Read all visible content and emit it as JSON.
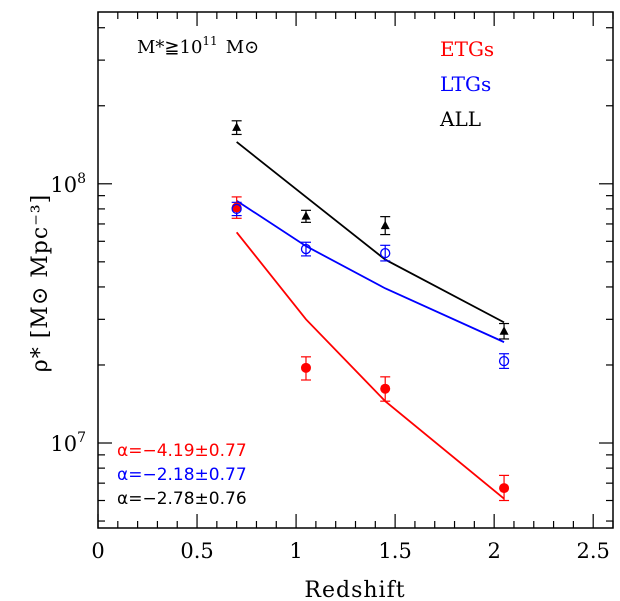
{
  "chart_data": {
    "type": "scatter",
    "title": "",
    "xlabel": "Redshift",
    "ylabel": "ρ* [M⊙ Mpc⁻³]",
    "xlim": [
      0,
      2.6
    ],
    "ylim": [
      4700000.0,
      460000000.0
    ],
    "yscale": "log",
    "x_ticks": [
      "0",
      "0.5",
      "1",
      "1.5",
      "2",
      "2.5"
    ],
    "y_ticks": [
      "10^7",
      "10^8"
    ],
    "annotation": {
      "lhs": "M*≧10",
      "exp": "11",
      "rhs": "M⊙"
    },
    "series": [
      {
        "name": "ETGs",
        "color": "#ff0000",
        "marker": "filled-circle",
        "points": [
          {
            "x": 0.7,
            "y": 81000000.0,
            "err_lo": 7400000.0,
            "err_hi": 8000000.0
          },
          {
            "x": 1.05,
            "y": 19500000.0,
            "err_lo": 2000000.0,
            "err_hi": 2000000.0
          },
          {
            "x": 1.45,
            "y": 16200000.0,
            "err_lo": 1700000.0,
            "err_hi": 1800000.0
          },
          {
            "x": 2.05,
            "y": 6700000.0,
            "err_lo": 700000.0,
            "err_hi": 800000.0
          }
        ],
        "fit": {
          "x": [
            0.7,
            1.05,
            1.45,
            2.05
          ],
          "y": [
            65000000.0,
            30000000.0,
            14500000.0,
            6100000.0
          ]
        },
        "fit_label": "α=−4.19±0.77"
      },
      {
        "name": "LTGs",
        "color": "#0000ff",
        "marker": "open-circle",
        "points": [
          {
            "x": 0.7,
            "y": 80000000.0,
            "err_lo": 4600000.0,
            "err_hi": 4800000.0
          },
          {
            "x": 1.05,
            "y": 56000000.0,
            "err_lo": 3300000.0,
            "err_hi": 3500000.0
          },
          {
            "x": 1.45,
            "y": 54000000.0,
            "err_lo": 3600000.0,
            "err_hi": 3900000.0
          },
          {
            "x": 2.05,
            "y": 20700000.0,
            "err_lo": 1300000.0,
            "err_hi": 1400000.0
          }
        ],
        "fit": {
          "x": [
            0.7,
            1.05,
            1.45,
            2.05
          ],
          "y": [
            86000000.0,
            57500000.0,
            39500000.0,
            24500000.0
          ]
        },
        "fit_label": "α=−2.18±0.77"
      },
      {
        "name": "ALL",
        "color": "#000000",
        "marker": "filled-triangle",
        "points": [
          {
            "x": 0.7,
            "y": 165000000.0,
            "err_lo": 10000000.0,
            "err_hi": 10000000.0
          },
          {
            "x": 1.05,
            "y": 75000000.0,
            "err_lo": 4000000.0,
            "err_hi": 4000000.0
          },
          {
            "x": 1.45,
            "y": 69000000.0,
            "err_lo": 5300000.0,
            "err_hi": 5700000.0
          },
          {
            "x": 2.05,
            "y": 27000000.0,
            "err_lo": 1800000.0,
            "err_hi": 1900000.0
          }
        ],
        "fit": {
          "x": [
            0.7,
            1.05,
            1.45,
            2.05
          ],
          "y": [
            145000000.0,
            89000000.0,
            51000000.0,
            29200000.0
          ]
        },
        "fit_label": "α=−2.78±0.76"
      }
    ]
  }
}
